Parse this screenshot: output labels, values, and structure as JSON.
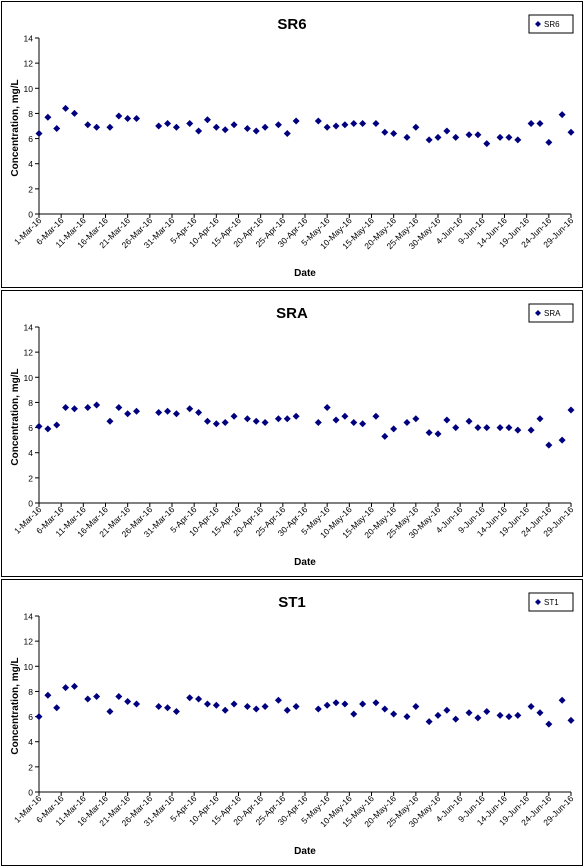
{
  "chart_data": [
    {
      "type": "scatter",
      "title": "SR6",
      "xlabel": "Date",
      "ylabel": "Concentration, mg/L",
      "ylim": [
        0,
        14
      ],
      "yticks": [
        0,
        2,
        4,
        6,
        8,
        10,
        12,
        14
      ],
      "xlim": [
        "2016-03-01",
        "2016-06-29"
      ],
      "xtick_labels": [
        "1-Mar-16",
        "6-Mar-16",
        "11-Mar-16",
        "16-Mar-16",
        "21-Mar-16",
        "26-Mar-16",
        "31-Mar-16",
        "5-Apr-16",
        "10-Apr-16",
        "15-Apr-16",
        "20-Apr-16",
        "25-Apr-16",
        "30-Apr-16",
        "5-May-16",
        "10-May-16",
        "15-May-16",
        "20-May-16",
        "25-May-16",
        "30-May-16",
        "4-Jun-16",
        "9-Jun-16",
        "14-Jun-16",
        "19-Jun-16",
        "24-Jun-16",
        "29-Jun-16"
      ],
      "legend": "top-right",
      "grid": false,
      "series": [
        {
          "name": "SR6",
          "color": "#00007f",
          "points": [
            [
              "2016-03-01",
              6.4
            ],
            [
              "2016-03-03",
              7.7
            ],
            [
              "2016-03-05",
              6.8
            ],
            [
              "2016-03-07",
              8.4
            ],
            [
              "2016-03-09",
              8.0
            ],
            [
              "2016-03-12",
              7.1
            ],
            [
              "2016-03-14",
              6.9
            ],
            [
              "2016-03-17",
              6.9
            ],
            [
              "2016-03-19",
              7.8
            ],
            [
              "2016-03-21",
              7.6
            ],
            [
              "2016-03-23",
              7.6
            ],
            [
              "2016-03-28",
              7.0
            ],
            [
              "2016-03-30",
              7.2
            ],
            [
              "2016-04-01",
              6.9
            ],
            [
              "2016-04-04",
              7.2
            ],
            [
              "2016-04-06",
              6.6
            ],
            [
              "2016-04-08",
              7.5
            ],
            [
              "2016-04-10",
              6.9
            ],
            [
              "2016-04-12",
              6.7
            ],
            [
              "2016-04-14",
              7.1
            ],
            [
              "2016-04-17",
              6.8
            ],
            [
              "2016-04-19",
              6.6
            ],
            [
              "2016-04-21",
              6.9
            ],
            [
              "2016-04-24",
              7.1
            ],
            [
              "2016-04-26",
              6.4
            ],
            [
              "2016-04-28",
              7.4
            ],
            [
              "2016-05-03",
              7.4
            ],
            [
              "2016-05-05",
              6.9
            ],
            [
              "2016-05-07",
              7.0
            ],
            [
              "2016-05-09",
              7.1
            ],
            [
              "2016-05-11",
              7.2
            ],
            [
              "2016-05-13",
              7.2
            ],
            [
              "2016-05-16",
              7.2
            ],
            [
              "2016-05-18",
              6.5
            ],
            [
              "2016-05-20",
              6.4
            ],
            [
              "2016-05-23",
              6.1
            ],
            [
              "2016-05-25",
              6.9
            ],
            [
              "2016-05-28",
              5.9
            ],
            [
              "2016-05-30",
              6.1
            ],
            [
              "2016-06-01",
              6.6
            ],
            [
              "2016-06-03",
              6.1
            ],
            [
              "2016-06-06",
              6.3
            ],
            [
              "2016-06-08",
              6.3
            ],
            [
              "2016-06-10",
              5.6
            ],
            [
              "2016-06-13",
              6.1
            ],
            [
              "2016-06-15",
              6.1
            ],
            [
              "2016-06-17",
              5.9
            ],
            [
              "2016-06-20",
              7.2
            ],
            [
              "2016-06-22",
              7.2
            ],
            [
              "2016-06-24",
              5.7
            ],
            [
              "2016-06-27",
              7.9
            ],
            [
              "2016-06-29",
              6.5
            ]
          ]
        }
      ]
    },
    {
      "type": "scatter",
      "title": "SRA",
      "xlabel": "Date",
      "ylabel": "Concentration, mg/L",
      "ylim": [
        0,
        14
      ],
      "yticks": [
        0,
        2,
        4,
        6,
        8,
        10,
        12,
        14
      ],
      "xlim": [
        "2016-03-01",
        "2016-06-29"
      ],
      "xtick_labels": [
        "1-Mar-16",
        "6-Mar-16",
        "11-Mar-16",
        "16-Mar-16",
        "21-Mar-16",
        "26-Mar-16",
        "31-Mar-16",
        "5-Apr-16",
        "10-Apr-16",
        "15-Apr-16",
        "20-Apr-16",
        "25-Apr-16",
        "30-Apr-16",
        "5-May-16",
        "10-May-16",
        "15-May-16",
        "20-May-16",
        "25-May-16",
        "30-May-16",
        "4-Jun-16",
        "9-Jun-16",
        "14-Jun-16",
        "19-Jun-16",
        "24-Jun-16",
        "29-Jun-16"
      ],
      "legend": "top-right",
      "grid": false,
      "series": [
        {
          "name": "SRA",
          "color": "#00007f",
          "points": [
            [
              "2016-03-01",
              6.1
            ],
            [
              "2016-03-03",
              5.9
            ],
            [
              "2016-03-05",
              6.2
            ],
            [
              "2016-03-07",
              7.6
            ],
            [
              "2016-03-09",
              7.5
            ],
            [
              "2016-03-12",
              7.6
            ],
            [
              "2016-03-14",
              7.8
            ],
            [
              "2016-03-17",
              6.5
            ],
            [
              "2016-03-19",
              7.6
            ],
            [
              "2016-03-21",
              7.1
            ],
            [
              "2016-03-23",
              7.3
            ],
            [
              "2016-03-28",
              7.2
            ],
            [
              "2016-03-30",
              7.3
            ],
            [
              "2016-04-01",
              7.1
            ],
            [
              "2016-04-04",
              7.5
            ],
            [
              "2016-04-06",
              7.2
            ],
            [
              "2016-04-08",
              6.5
            ],
            [
              "2016-04-10",
              6.3
            ],
            [
              "2016-04-12",
              6.4
            ],
            [
              "2016-04-14",
              6.9
            ],
            [
              "2016-04-17",
              6.7
            ],
            [
              "2016-04-19",
              6.5
            ],
            [
              "2016-04-21",
              6.4
            ],
            [
              "2016-04-24",
              6.7
            ],
            [
              "2016-04-26",
              6.7
            ],
            [
              "2016-04-28",
              6.9
            ],
            [
              "2016-05-03",
              6.4
            ],
            [
              "2016-05-05",
              7.6
            ],
            [
              "2016-05-07",
              6.6
            ],
            [
              "2016-05-09",
              6.9
            ],
            [
              "2016-05-11",
              6.4
            ],
            [
              "2016-05-13",
              6.3
            ],
            [
              "2016-05-16",
              6.9
            ],
            [
              "2016-05-18",
              5.3
            ],
            [
              "2016-05-20",
              5.9
            ],
            [
              "2016-05-23",
              6.4
            ],
            [
              "2016-05-25",
              6.7
            ],
            [
              "2016-05-28",
              5.6
            ],
            [
              "2016-05-30",
              5.5
            ],
            [
              "2016-06-01",
              6.6
            ],
            [
              "2016-06-03",
              6.0
            ],
            [
              "2016-06-06",
              6.5
            ],
            [
              "2016-06-08",
              6.0
            ],
            [
              "2016-06-10",
              6.0
            ],
            [
              "2016-06-13",
              6.0
            ],
            [
              "2016-06-15",
              6.0
            ],
            [
              "2016-06-17",
              5.8
            ],
            [
              "2016-06-20",
              5.8
            ],
            [
              "2016-06-22",
              6.7
            ],
            [
              "2016-06-24",
              4.6
            ],
            [
              "2016-06-27",
              5.0
            ],
            [
              "2016-06-29",
              7.4
            ]
          ]
        }
      ]
    },
    {
      "type": "scatter",
      "title": "ST1",
      "xlabel": "Date",
      "ylabel": "Concentration, mg/L",
      "ylim": [
        0,
        14
      ],
      "yticks": [
        0,
        2,
        4,
        6,
        8,
        10,
        12,
        14
      ],
      "xlim": [
        "2016-03-01",
        "2016-06-29"
      ],
      "xtick_labels": [
        "1-Mar-16",
        "6-Mar-16",
        "11-Mar-16",
        "16-Mar-16",
        "21-Mar-16",
        "26-Mar-16",
        "31-Mar-16",
        "5-Apr-16",
        "10-Apr-16",
        "15-Apr-16",
        "20-Apr-16",
        "25-Apr-16",
        "30-Apr-16",
        "5-May-16",
        "10-May-16",
        "15-May-16",
        "20-May-16",
        "25-May-16",
        "30-May-16",
        "4-Jun-16",
        "9-Jun-16",
        "14-Jun-16",
        "19-Jun-16",
        "24-Jun-16",
        "29-Jun-16"
      ],
      "legend": "top-right",
      "grid": false,
      "series": [
        {
          "name": "ST1",
          "color": "#00007f",
          "points": [
            [
              "2016-03-01",
              6.0
            ],
            [
              "2016-03-03",
              7.7
            ],
            [
              "2016-03-05",
              6.7
            ],
            [
              "2016-03-07",
              8.3
            ],
            [
              "2016-03-09",
              8.4
            ],
            [
              "2016-03-12",
              7.4
            ],
            [
              "2016-03-14",
              7.6
            ],
            [
              "2016-03-17",
              6.4
            ],
            [
              "2016-03-19",
              7.6
            ],
            [
              "2016-03-21",
              7.2
            ],
            [
              "2016-03-23",
              7.0
            ],
            [
              "2016-03-28",
              6.8
            ],
            [
              "2016-03-30",
              6.7
            ],
            [
              "2016-04-01",
              6.4
            ],
            [
              "2016-04-04",
              7.5
            ],
            [
              "2016-04-06",
              7.4
            ],
            [
              "2016-04-08",
              7.0
            ],
            [
              "2016-04-10",
              6.9
            ],
            [
              "2016-04-12",
              6.5
            ],
            [
              "2016-04-14",
              7.0
            ],
            [
              "2016-04-17",
              6.8
            ],
            [
              "2016-04-19",
              6.6
            ],
            [
              "2016-04-21",
              6.8
            ],
            [
              "2016-04-24",
              7.3
            ],
            [
              "2016-04-26",
              6.5
            ],
            [
              "2016-04-28",
              6.8
            ],
            [
              "2016-05-03",
              6.6
            ],
            [
              "2016-05-05",
              6.9
            ],
            [
              "2016-05-07",
              7.1
            ],
            [
              "2016-05-09",
              7.0
            ],
            [
              "2016-05-11",
              6.2
            ],
            [
              "2016-05-13",
              7.0
            ],
            [
              "2016-05-16",
              7.1
            ],
            [
              "2016-05-18",
              6.6
            ],
            [
              "2016-05-20",
              6.2
            ],
            [
              "2016-05-23",
              6.0
            ],
            [
              "2016-05-25",
              6.8
            ],
            [
              "2016-05-28",
              5.6
            ],
            [
              "2016-05-30",
              6.1
            ],
            [
              "2016-06-01",
              6.5
            ],
            [
              "2016-06-03",
              5.8
            ],
            [
              "2016-06-06",
              6.3
            ],
            [
              "2016-06-08",
              5.9
            ],
            [
              "2016-06-10",
              6.4
            ],
            [
              "2016-06-13",
              6.1
            ],
            [
              "2016-06-15",
              6.0
            ],
            [
              "2016-06-17",
              6.1
            ],
            [
              "2016-06-20",
              6.8
            ],
            [
              "2016-06-22",
              6.3
            ],
            [
              "2016-06-24",
              5.4
            ],
            [
              "2016-06-27",
              7.3
            ],
            [
              "2016-06-29",
              5.7
            ]
          ]
        }
      ]
    }
  ]
}
